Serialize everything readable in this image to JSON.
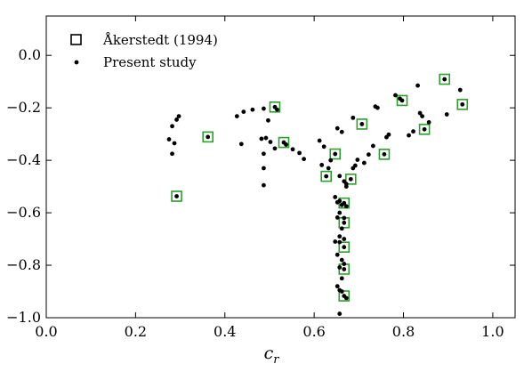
{
  "chart_data": {
    "type": "scatter",
    "xlabel": "c",
    "xlabel_sub": "r",
    "ylabel": "",
    "xlim": [
      0.0,
      1.05
    ],
    "ylim": [
      -1.0,
      0.15
    ],
    "xticks": [
      0.0,
      0.2,
      0.4,
      0.6,
      0.8,
      1.0
    ],
    "xtick_labels": [
      "0.0",
      "0.2",
      "0.4",
      "0.6",
      "0.8",
      "1.0"
    ],
    "yticks": [
      0.0,
      -0.2,
      -0.4,
      -0.6,
      -0.8,
      -1.0
    ],
    "ytick_labels": [
      "0.0",
      "−0.2",
      "−0.4",
      "−0.6",
      "−0.8",
      "−1.0"
    ],
    "grid": false,
    "legend": {
      "placement": "top-left",
      "entries": [
        "Åkerstedt (1994)",
        "Present study"
      ]
    },
    "colors": {
      "reference_marker_edge": "#2ca02c",
      "point": "#000000"
    },
    "series": [
      {
        "name": "Åkerstedt (1994)",
        "marker": "open-square",
        "points": [
          [
            0.292,
            -0.537
          ],
          [
            0.362,
            -0.311
          ],
          [
            0.512,
            -0.197
          ],
          [
            0.532,
            -0.332
          ],
          [
            0.627,
            -0.461
          ],
          [
            0.647,
            -0.376
          ],
          [
            0.682,
            -0.472
          ],
          [
            0.707,
            -0.262
          ],
          [
            0.757,
            -0.377
          ],
          [
            0.797,
            -0.172
          ],
          [
            0.847,
            -0.282
          ],
          [
            0.892,
            -0.091
          ],
          [
            0.932,
            -0.187
          ],
          [
            0.667,
            -0.563
          ],
          [
            0.667,
            -0.638
          ],
          [
            0.667,
            -0.731
          ],
          [
            0.667,
            -0.815
          ],
          [
            0.667,
            -0.917
          ]
        ]
      },
      {
        "name": "Present study",
        "marker": "dot",
        "points": [
          [
            0.275,
            -0.32
          ],
          [
            0.282,
            -0.27
          ],
          [
            0.282,
            -0.375
          ],
          [
            0.287,
            -0.335
          ],
          [
            0.292,
            -0.245
          ],
          [
            0.297,
            -0.232
          ],
          [
            0.292,
            -0.537
          ],
          [
            0.362,
            -0.311
          ],
          [
            0.427,
            -0.232
          ],
          [
            0.437,
            -0.338
          ],
          [
            0.442,
            -0.215
          ],
          [
            0.462,
            -0.207
          ],
          [
            0.482,
            -0.318
          ],
          [
            0.487,
            -0.203
          ],
          [
            0.487,
            -0.375
          ],
          [
            0.487,
            -0.43
          ],
          [
            0.487,
            -0.495
          ],
          [
            0.492,
            -0.315
          ],
          [
            0.497,
            -0.248
          ],
          [
            0.502,
            -0.33
          ],
          [
            0.512,
            -0.197
          ],
          [
            0.517,
            -0.207
          ],
          [
            0.512,
            -0.355
          ],
          [
            0.532,
            -0.332
          ],
          [
            0.537,
            -0.34
          ],
          [
            0.552,
            -0.358
          ],
          [
            0.567,
            -0.372
          ],
          [
            0.577,
            -0.395
          ],
          [
            0.612,
            -0.325
          ],
          [
            0.617,
            -0.418
          ],
          [
            0.622,
            -0.348
          ],
          [
            0.627,
            -0.461
          ],
          [
            0.632,
            -0.43
          ],
          [
            0.637,
            -0.4
          ],
          [
            0.647,
            -0.376
          ],
          [
            0.652,
            -0.278
          ],
          [
            0.657,
            -0.46
          ],
          [
            0.662,
            -0.292
          ],
          [
            0.682,
            -0.472
          ],
          [
            0.687,
            -0.238
          ],
          [
            0.687,
            -0.43
          ],
          [
            0.692,
            -0.42
          ],
          [
            0.697,
            -0.398
          ],
          [
            0.707,
            -0.262
          ],
          [
            0.712,
            -0.41
          ],
          [
            0.722,
            -0.378
          ],
          [
            0.732,
            -0.345
          ],
          [
            0.737,
            -0.195
          ],
          [
            0.742,
            -0.2
          ],
          [
            0.757,
            -0.377
          ],
          [
            0.762,
            -0.312
          ],
          [
            0.767,
            -0.302
          ],
          [
            0.782,
            -0.152
          ],
          [
            0.792,
            -0.165
          ],
          [
            0.797,
            -0.172
          ],
          [
            0.812,
            -0.305
          ],
          [
            0.822,
            -0.29
          ],
          [
            0.832,
            -0.115
          ],
          [
            0.837,
            -0.22
          ],
          [
            0.842,
            -0.232
          ],
          [
            0.847,
            -0.282
          ],
          [
            0.857,
            -0.255
          ],
          [
            0.892,
            -0.091
          ],
          [
            0.897,
            -0.225
          ],
          [
            0.927,
            -0.132
          ],
          [
            0.932,
            -0.187
          ],
          [
            0.647,
            -0.54
          ],
          [
            0.652,
            -0.56
          ],
          [
            0.657,
            -0.555
          ],
          [
            0.662,
            -0.57
          ],
          [
            0.667,
            -0.563
          ],
          [
            0.672,
            -0.575
          ],
          [
            0.657,
            -0.6
          ],
          [
            0.667,
            -0.62
          ],
          [
            0.652,
            -0.618
          ],
          [
            0.667,
            -0.638
          ],
          [
            0.662,
            -0.66
          ],
          [
            0.657,
            -0.69
          ],
          [
            0.667,
            -0.7
          ],
          [
            0.647,
            -0.71
          ],
          [
            0.657,
            -0.712
          ],
          [
            0.667,
            -0.731
          ],
          [
            0.652,
            -0.76
          ],
          [
            0.662,
            -0.78
          ],
          [
            0.667,
            -0.795
          ],
          [
            0.657,
            -0.808
          ],
          [
            0.667,
            -0.815
          ],
          [
            0.662,
            -0.85
          ],
          [
            0.652,
            -0.88
          ],
          [
            0.657,
            -0.895
          ],
          [
            0.662,
            -0.9
          ],
          [
            0.667,
            -0.917
          ],
          [
            0.672,
            -0.925
          ],
          [
            0.657,
            -0.985
          ],
          [
            0.672,
            -0.49
          ],
          [
            0.672,
            -0.5
          ],
          [
            0.667,
            -0.48
          ]
        ]
      }
    ]
  }
}
